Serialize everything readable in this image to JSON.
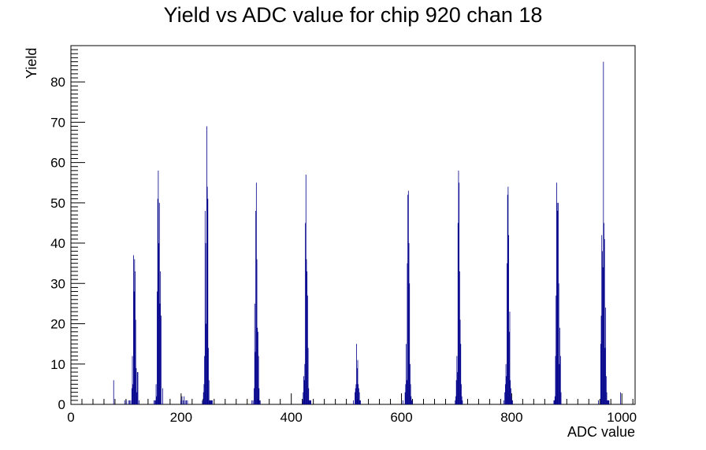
{
  "chart_data": {
    "type": "bar",
    "title": "Yield vs ADC value for chip 920 chan 18",
    "xlabel": "ADC value",
    "ylabel": "Yield",
    "xlim": [
      0,
      1024
    ],
    "ylim": [
      0,
      89
    ],
    "x_ticks": [
      0,
      200,
      400,
      600,
      800,
      1000
    ],
    "y_ticks": [
      0,
      10,
      20,
      30,
      40,
      50,
      60,
      70,
      80
    ],
    "grid": false,
    "legend": "none",
    "bar_color": "#00008b",
    "bin_width": 1,
    "series": [
      {
        "x": [
          77,
          97,
          100,
          104,
          106,
          108,
          110,
          111,
          112,
          113,
          114,
          115,
          116,
          117,
          118,
          119,
          120,
          121,
          123,
          150,
          152,
          153,
          154,
          155,
          156,
          157,
          158,
          159,
          160,
          161,
          162,
          163,
          166,
          199,
          201,
          203,
          205,
          207,
          209,
          211,
          238,
          240,
          241,
          242,
          243,
          244,
          245,
          246,
          247,
          248,
          249,
          250,
          251,
          252,
          253,
          254,
          255,
          256,
          328,
          330,
          332,
          333,
          334,
          335,
          336,
          337,
          338,
          339,
          340,
          341,
          342,
          343,
          420,
          421,
          422,
          423,
          424,
          425,
          426,
          427,
          428,
          429,
          430,
          431,
          432,
          433,
          434,
          435,
          512,
          515,
          516,
          517,
          518,
          519,
          520,
          521,
          522,
          523,
          524,
          525,
          602,
          606,
          607,
          608,
          609,
          610,
          611,
          612,
          613,
          614,
          615,
          616,
          617,
          618,
          619,
          697,
          698,
          699,
          700,
          701,
          702,
          703,
          704,
          705,
          706,
          707,
          708,
          709,
          710,
          785,
          787,
          788,
          789,
          790,
          791,
          792,
          793,
          794,
          795,
          796,
          797,
          798,
          799,
          800,
          801,
          876,
          877,
          878,
          879,
          880,
          881,
          882,
          883,
          884,
          885,
          886,
          887,
          888,
          889,
          957,
          961,
          962,
          963,
          964,
          965,
          966,
          967,
          968,
          969,
          970,
          971,
          972,
          973,
          974,
          975,
          976,
          997
        ],
        "values": [
          6,
          1,
          1,
          1,
          1,
          1,
          4,
          12,
          5,
          37,
          28,
          36,
          33,
          21,
          9,
          3,
          8,
          8,
          1,
          1,
          1,
          1,
          5,
          2,
          28,
          51,
          58,
          40,
          50,
          25,
          33,
          22,
          4,
          1,
          2,
          1,
          2,
          1,
          1,
          1,
          1,
          3,
          5,
          12,
          48,
          40,
          20,
          69,
          54,
          51,
          14,
          6,
          1,
          1,
          1,
          1,
          1,
          1,
          1,
          1,
          4,
          25,
          13,
          48,
          55,
          36,
          19,
          18,
          12,
          4,
          1,
          1,
          1,
          3,
          7,
          6,
          10,
          45,
          57,
          36,
          33,
          27,
          14,
          4,
          1,
          1,
          1,
          1,
          1,
          3,
          4,
          5,
          15,
          9,
          11,
          5,
          4,
          3,
          1,
          1,
          1,
          3,
          5,
          15,
          6,
          35,
          52,
          53,
          40,
          30,
          10,
          5,
          2,
          1,
          1,
          1,
          2,
          6,
          12,
          8,
          45,
          58,
          55,
          33,
          21,
          15,
          5,
          2,
          1,
          1,
          3,
          5,
          10,
          7,
          35,
          52,
          54,
          42,
          18,
          23,
          6,
          4,
          2,
          1,
          1,
          1,
          1,
          2,
          12,
          27,
          55,
          50,
          48,
          50,
          30,
          10,
          19,
          12,
          3,
          1,
          15,
          22,
          42,
          38,
          34,
          85,
          45,
          41,
          14,
          24,
          7,
          3,
          1,
          1,
          1,
          1,
          3
        ]
      }
    ]
  }
}
